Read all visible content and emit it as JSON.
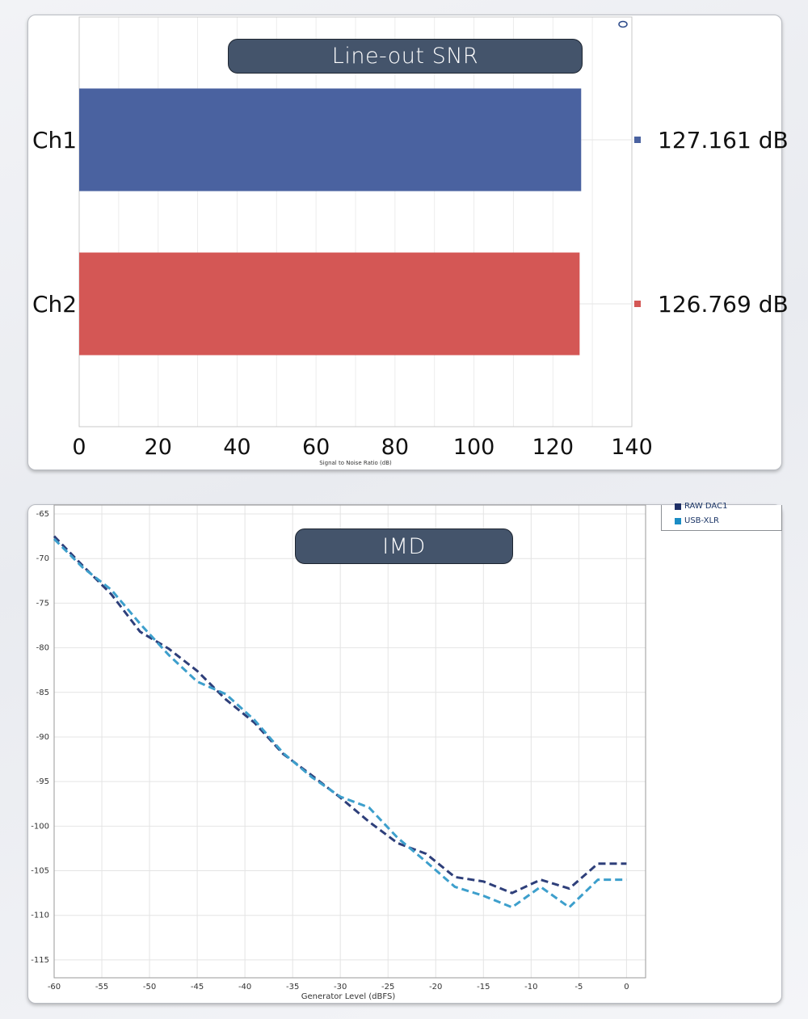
{
  "chart_data": [
    {
      "type": "bar",
      "title": "Line-out SNR",
      "xlabel": "Signal to Noise Ratio (dB)",
      "categories": [
        "Ch1",
        "Ch2"
      ],
      "values": [
        127.161,
        126.769
      ],
      "value_labels": [
        "127.161 dB",
        "126.769 dB"
      ],
      "colors": [
        "#4a62a0",
        "#d45755"
      ],
      "xlim": [
        0,
        140
      ],
      "xticks": [
        0,
        20,
        40,
        60,
        80,
        100,
        120,
        140
      ],
      "orientation": "horizontal",
      "grid": true
    },
    {
      "type": "line",
      "title": "IMD",
      "xlabel": "Generator Level (dBFS)",
      "ylabel": "",
      "xlim": [
        -60,
        2
      ],
      "ylim": [
        -117,
        -64
      ],
      "xticks": [
        -60,
        -55,
        -50,
        -45,
        -40,
        -35,
        -30,
        -25,
        -20,
        -15,
        -10,
        -5,
        0
      ],
      "yticks": [
        -65,
        -70,
        -75,
        -80,
        -85,
        -90,
        -95,
        -100,
        -105,
        -110,
        -115
      ],
      "grid": true,
      "legend": "top-right",
      "series": [
        {
          "name": "RAW DAC1",
          "color": "#2e3f7a",
          "x": [
            -60,
            -57,
            -54,
            -51,
            -48,
            -45,
            -42,
            -39,
            -36,
            -33,
            -30,
            -27,
            -24,
            -21,
            -18,
            -15,
            -12,
            -9,
            -6,
            -3,
            0
          ],
          "y": [
            -67.5,
            -70.8,
            -74.0,
            -78.2,
            -80.1,
            -82.6,
            -85.8,
            -88.4,
            -91.9,
            -94.3,
            -96.8,
            -99.5,
            -101.9,
            -103.1,
            -105.7,
            -106.2,
            -107.5,
            -106.0,
            -107.0,
            -104.2,
            -104.2
          ]
        },
        {
          "name": "USB-XLR",
          "color": "#3d9fcc",
          "x": [
            -60,
            -57,
            -54,
            -51,
            -48,
            -45,
            -42,
            -39,
            -36,
            -33,
            -30,
            -27,
            -24,
            -21,
            -18,
            -15,
            -12,
            -9,
            -6,
            -3,
            0
          ],
          "y": [
            -67.8,
            -71.0,
            -73.5,
            -77.3,
            -80.8,
            -83.8,
            -85.2,
            -88.1,
            -91.8,
            -94.5,
            -96.7,
            -97.9,
            -101.3,
            -104.0,
            -106.8,
            -107.8,
            -109.1,
            -106.8,
            -109.1,
            -106.0,
            -106.0
          ]
        }
      ]
    }
  ]
}
